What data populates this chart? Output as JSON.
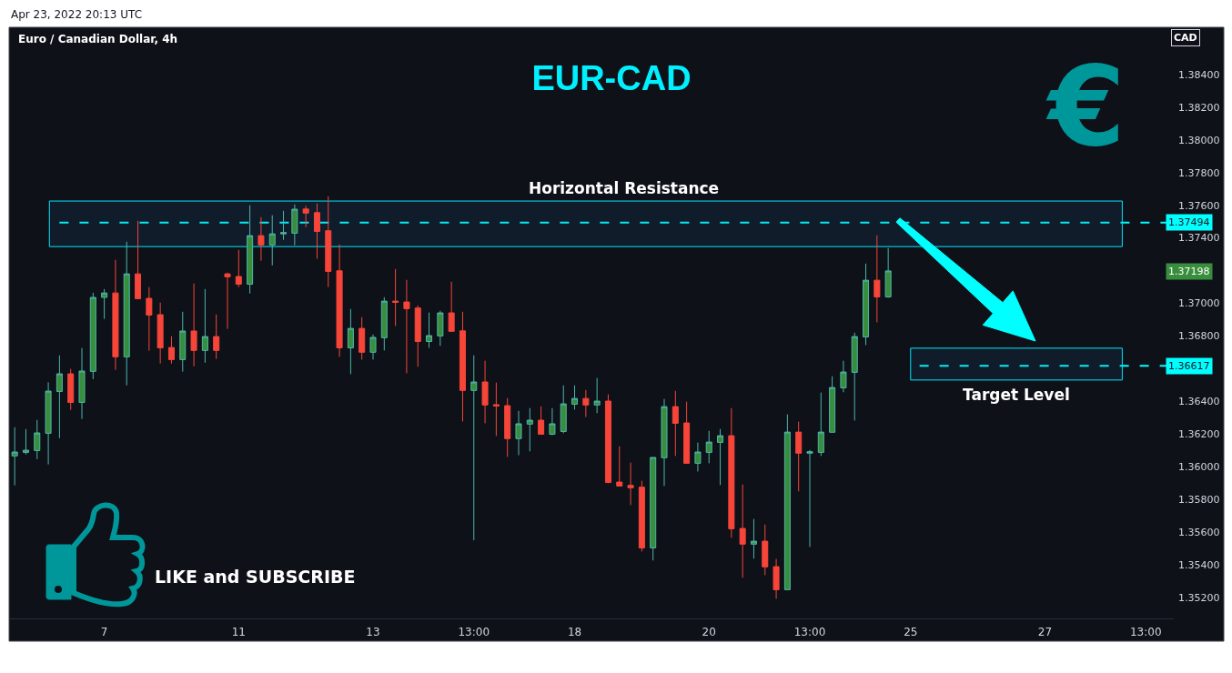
{
  "chart_data": {
    "type": "candlestick",
    "title": "EUR-CAD",
    "subtitle": "Euro / Canadian Dollar, 4h",
    "categories": [
      null,
      null,
      null,
      null,
      null,
      null,
      null,
      null,
      "7",
      null,
      null,
      null,
      null,
      null,
      null,
      null,
      null,
      null,
      null,
      null,
      "11",
      null,
      null,
      null,
      null,
      null,
      null,
      null,
      null,
      null,
      null,
      null,
      "13",
      null,
      null,
      null,
      null,
      null,
      null,
      null,
      null,
      "13:00",
      null,
      null,
      null,
      null,
      null,
      null,
      null,
      null,
      "18",
      null,
      null,
      null,
      null,
      null,
      null,
      null,
      null,
      null,
      null,
      null,
      "20",
      null,
      null,
      null,
      null,
      null,
      null,
      null,
      null,
      "13:00",
      null,
      null,
      null,
      null,
      null,
      null,
      null,
      null,
      "25",
      null,
      null,
      null,
      null,
      null,
      null,
      null,
      null,
      null,
      null,
      null,
      "27",
      null,
      null,
      null,
      null,
      null,
      null,
      null,
      null,
      "13:00",
      null,
      null
    ],
    "ohlc": [
      [
        1.36065,
        1.36241,
        1.35885,
        1.36089
      ],
      [
        1.36087,
        1.3623,
        1.36074,
        1.361
      ],
      [
        1.36098,
        1.36286,
        1.36046,
        1.36206
      ],
      [
        1.36204,
        1.36516,
        1.36013,
        1.36462
      ],
      [
        1.3646,
        1.36681,
        1.36174,
        1.36568
      ],
      [
        1.36568,
        1.36598,
        1.36347,
        1.36393
      ],
      [
        1.36393,
        1.36726,
        1.36291,
        1.36585
      ],
      [
        1.36583,
        1.37065,
        1.36536,
        1.37036
      ],
      [
        1.37036,
        1.37087,
        1.36904,
        1.37063
      ],
      [
        1.37063,
        1.37266,
        1.36592,
        1.36672
      ],
      [
        1.36672,
        1.37377,
        1.36497,
        1.3718
      ],
      [
        1.3718,
        1.37505,
        1.37028,
        1.37028
      ],
      [
        1.3703,
        1.37099,
        1.36709,
        1.36928
      ],
      [
        1.3693,
        1.37004,
        1.36631,
        1.36727
      ],
      [
        1.36729,
        1.36798,
        1.36631,
        1.36655
      ],
      [
        1.36655,
        1.36948,
        1.36581,
        1.3683
      ],
      [
        1.3683,
        1.37121,
        1.36614,
        1.36711
      ],
      [
        1.36711,
        1.37087,
        1.36636,
        1.36796
      ],
      [
        1.36796,
        1.36932,
        1.36659,
        1.36711
      ],
      [
        1.3718,
        1.37188,
        1.36843,
        1.37162
      ],
      [
        1.37164,
        1.37327,
        1.37099,
        1.37117
      ],
      [
        1.37117,
        1.376,
        1.3706,
        1.37414
      ],
      [
        1.37414,
        1.37527,
        1.3726,
        1.37357
      ],
      [
        1.37357,
        1.37539,
        1.37232,
        1.37425
      ],
      [
        1.37425,
        1.37566,
        1.37388,
        1.37433
      ],
      [
        1.37429,
        1.37605,
        1.37355,
        1.37576
      ],
      [
        1.37577,
        1.37596,
        1.37466,
        1.37552
      ],
      [
        1.37555,
        1.37611,
        1.37273,
        1.3744
      ],
      [
        1.37444,
        1.37655,
        1.37099,
        1.37195
      ],
      [
        1.37199,
        1.3736,
        1.36672,
        1.36727
      ],
      [
        1.36727,
        1.36965,
        1.36566,
        1.36846
      ],
      [
        1.36846,
        1.36915,
        1.36655,
        1.367
      ],
      [
        1.367,
        1.36809,
        1.36655,
        1.36791
      ],
      [
        1.36789,
        1.37037,
        1.36711,
        1.37013
      ],
      [
        1.37013,
        1.3721,
        1.36861,
        1.37006
      ],
      [
        1.37008,
        1.37143,
        1.36572,
        1.36967
      ],
      [
        1.36971,
        1.36987,
        1.36611,
        1.36766
      ],
      [
        1.36766,
        1.36943,
        1.36727,
        1.36802
      ],
      [
        1.368,
        1.36954,
        1.36739,
        1.36941
      ],
      [
        1.36941,
        1.37132,
        1.36828,
        1.36828
      ],
      [
        1.36831,
        1.36948,
        1.36276,
        1.36466
      ],
      [
        1.36466,
        1.36681,
        1.35549,
        1.36518
      ],
      [
        1.36518,
        1.36648,
        1.36265,
        1.36377
      ],
      [
        1.36379,
        1.36514,
        1.36187,
        1.36371
      ],
      [
        1.36373,
        1.36419,
        1.36059,
        1.36171
      ],
      [
        1.36171,
        1.36341,
        1.3607,
        1.36262
      ],
      [
        1.3626,
        1.36358,
        1.36093,
        1.36284
      ],
      [
        1.36284,
        1.36369,
        1.36198,
        1.36198
      ],
      [
        1.36198,
        1.36358,
        1.36193,
        1.36262
      ],
      [
        1.36215,
        1.36497,
        1.36204,
        1.36384
      ],
      [
        1.36382,
        1.36497,
        1.36349,
        1.36417
      ],
      [
        1.36417,
        1.36469,
        1.36304,
        1.36377
      ],
      [
        1.36377,
        1.36542,
        1.36327,
        1.36401
      ],
      [
        1.36401,
        1.36442,
        1.35898,
        1.35903
      ],
      [
        1.35905,
        1.36124,
        1.35881,
        1.35881
      ],
      [
        1.35885,
        1.36024,
        1.35764,
        1.3587
      ],
      [
        1.35874,
        1.35913,
        1.3548,
        1.35502
      ],
      [
        1.35502,
        1.36056,
        1.35425,
        1.36056
      ],
      [
        1.36054,
        1.36414,
        1.35881,
        1.36367
      ],
      [
        1.36367,
        1.36464,
        1.36065,
        1.36265
      ],
      [
        1.36267,
        1.36397,
        1.3602,
        1.3602
      ],
      [
        1.3602,
        1.36147,
        1.3597,
        1.36089
      ],
      [
        1.36087,
        1.36219,
        1.3602,
        1.3615
      ],
      [
        1.36148,
        1.3623,
        1.35887,
        1.36189
      ],
      [
        1.36189,
        1.36358,
        1.35564,
        1.35619
      ],
      [
        1.35621,
        1.3589,
        1.35319,
        1.35525
      ],
      [
        1.35525,
        1.35679,
        1.35436,
        1.35543
      ],
      [
        1.35543,
        1.35645,
        1.35335,
        1.35386
      ],
      [
        1.35387,
        1.35434,
        1.35191,
        1.35246
      ],
      [
        1.35246,
        1.36319,
        1.35246,
        1.36211
      ],
      [
        1.36211,
        1.36275,
        1.35848,
        1.36082
      ],
      [
        1.36082,
        1.36102,
        1.35508,
        1.36091
      ],
      [
        1.36087,
        1.36453,
        1.36065,
        1.36211
      ],
      [
        1.3621,
        1.36553,
        1.3621,
        1.36484
      ],
      [
        1.36482,
        1.36648,
        1.36455,
        1.36579
      ],
      [
        1.36577,
        1.3682,
        1.36282,
        1.36796
      ],
      [
        1.36794,
        1.37243,
        1.36744,
        1.37141
      ],
      [
        1.37141,
        1.37416,
        1.36883,
        1.37039
      ],
      [
        1.37039,
        1.37338,
        1.37034,
        1.37198
      ],
      null,
      null,
      null,
      null,
      null,
      null,
      null,
      null,
      null,
      null,
      null,
      null,
      null,
      null,
      null,
      null,
      null,
      null,
      null,
      null,
      null,
      null,
      null,
      null,
      null
    ],
    "ylim": [
      1.3507,
      1.3869
    ],
    "yticks": [
      {
        "value": 1.352,
        "label": "1.35200"
      },
      {
        "value": 1.354,
        "label": "1.35400"
      },
      {
        "value": 1.356,
        "label": "1.35600"
      },
      {
        "value": 1.358,
        "label": "1.35800"
      },
      {
        "value": 1.36,
        "label": "1.36000"
      },
      {
        "value": 1.362,
        "label": "1.36200"
      },
      {
        "value": 1.364,
        "label": "1.36400"
      },
      {
        "value": 1.368,
        "label": "1.36800"
      },
      {
        "value": 1.37,
        "label": "1.37000"
      },
      {
        "value": 1.374,
        "label": "1.37400"
      },
      {
        "value": 1.376,
        "label": "1.37600"
      },
      {
        "value": 1.378,
        "label": "1.37800"
      },
      {
        "value": 1.38,
        "label": "1.38000"
      },
      {
        "value": 1.382,
        "label": "1.38200"
      },
      {
        "value": 1.384,
        "label": "1.38400"
      }
    ],
    "ref_lines": [
      {
        "axis": "y",
        "value": 1.37494,
        "label": "1.37494",
        "color": "#00ffff",
        "line_style": "dashed"
      },
      {
        "axis": "y",
        "value": 1.36617,
        "label": "1.36617",
        "color": "#00ffff",
        "line_style": "dashed"
      }
    ],
    "bands": [
      {
        "axis": "y",
        "from": 1.37347,
        "to": 1.37626,
        "label": "Horizontal Resistance",
        "color": "#00e5ff"
      },
      {
        "axis": "y",
        "from": 1.3653,
        "to": 1.36725,
        "label": "Target Level",
        "color": "#00e5ff"
      }
    ],
    "annotations": [
      "Apr 23, 2022 20:13 UTC",
      "CAD",
      "€",
      "LIKE and SUBSCRIBE",
      "1.37198"
    ]
  }
}
